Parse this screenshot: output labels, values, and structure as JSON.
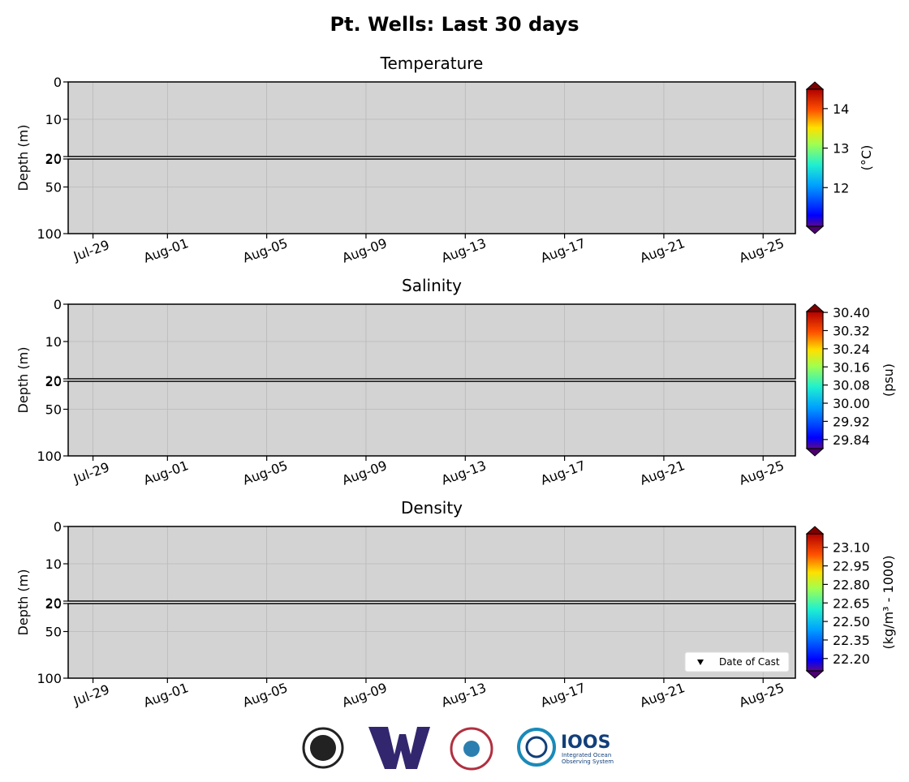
{
  "title": "Pt. Wells: Last 30 days",
  "chart_data": [
    {
      "type": "heatmap",
      "title": "Temperature",
      "ylabel": "Depth (m)",
      "background": "#d3d3d3",
      "grid": true,
      "ylim_upper": [
        0,
        20
      ],
      "yticks_upper": [
        0,
        10,
        20
      ],
      "ylim_lower": [
        20,
        100
      ],
      "yticks_lower": [
        20,
        50,
        100
      ],
      "xlim": [
        -1.0,
        28.3
      ],
      "xticks": [
        {
          "value": 0,
          "label": "Jul-29"
        },
        {
          "value": 3,
          "label": "Aug-01"
        },
        {
          "value": 7,
          "label": "Aug-05"
        },
        {
          "value": 11,
          "label": "Aug-09"
        },
        {
          "value": 15,
          "label": "Aug-13"
        },
        {
          "value": 19,
          "label": "Aug-17"
        },
        {
          "value": 23,
          "label": "Aug-21"
        },
        {
          "value": 27,
          "label": "Aug-25"
        }
      ],
      "colorbar": {
        "label": "(°C)",
        "lim": [
          11.02,
          14.49
        ],
        "ticks": [
          12,
          13,
          14
        ]
      }
    },
    {
      "type": "heatmap",
      "title": "Salinity",
      "ylabel": "Depth (m)",
      "background": "#d3d3d3",
      "grid": true,
      "ylim_upper": [
        0,
        20
      ],
      "yticks_upper": [
        0,
        10,
        20
      ],
      "ylim_lower": [
        20,
        100
      ],
      "yticks_lower": [
        20,
        50,
        100
      ],
      "xlim": [
        -1.0,
        28.3
      ],
      "xticks": [
        {
          "value": 0,
          "label": "Jul-29"
        },
        {
          "value": 3,
          "label": "Aug-01"
        },
        {
          "value": 7,
          "label": "Aug-05"
        },
        {
          "value": 11,
          "label": "Aug-09"
        },
        {
          "value": 15,
          "label": "Aug-13"
        },
        {
          "value": 19,
          "label": "Aug-17"
        },
        {
          "value": 23,
          "label": "Aug-21"
        },
        {
          "value": 27,
          "label": "Aug-25"
        }
      ],
      "colorbar": {
        "label": "(psu)",
        "lim": [
          29.8,
          30.404
        ],
        "ticks": [
          {
            "value": 29.84,
            "label": "29.84"
          },
          {
            "value": 29.92,
            "label": "29.92"
          },
          {
            "value": 30.0,
            "label": "30.00"
          },
          {
            "value": 30.08,
            "label": "30.08"
          },
          {
            "value": 30.16,
            "label": "30.16"
          },
          {
            "value": 30.24,
            "label": "30.24"
          },
          {
            "value": 30.32,
            "label": "30.32"
          },
          {
            "value": 30.4,
            "label": "30.40"
          }
        ]
      }
    },
    {
      "type": "heatmap",
      "title": "Density",
      "ylabel": "Depth (m)",
      "background": "#d3d3d3",
      "grid": true,
      "ylim_upper": [
        0,
        20
      ],
      "yticks_upper": [
        0,
        10,
        20
      ],
      "ylim_lower": [
        20,
        100
      ],
      "yticks_lower": [
        20,
        50,
        100
      ],
      "xlim": [
        -1.0,
        28.3
      ],
      "xticks": [
        {
          "value": 0,
          "label": "Jul-29"
        },
        {
          "value": 3,
          "label": "Aug-01"
        },
        {
          "value": 7,
          "label": "Aug-05"
        },
        {
          "value": 11,
          "label": "Aug-09"
        },
        {
          "value": 15,
          "label": "Aug-13"
        },
        {
          "value": 19,
          "label": "Aug-17"
        },
        {
          "value": 23,
          "label": "Aug-21"
        },
        {
          "value": 27,
          "label": "Aug-25"
        }
      ],
      "colorbar": {
        "label": "(kg/m³ - 1000)",
        "lim": [
          22.1,
          23.21
        ],
        "ticks": [
          {
            "value": 22.2,
            "label": "22.20"
          },
          {
            "value": 22.35,
            "label": "22.35"
          },
          {
            "value": 22.5,
            "label": "22.50"
          },
          {
            "value": 22.65,
            "label": "22.65"
          },
          {
            "value": 22.8,
            "label": "22.80"
          },
          {
            "value": 22.95,
            "label": "22.95"
          },
          {
            "value": 23.1,
            "label": "23.10"
          }
        ]
      },
      "legend": {
        "entries": [
          "Date of Cast"
        ],
        "loc": "lower right"
      }
    }
  ],
  "logos": {
    "ioos_name": "IOOS",
    "ioos_tagline": [
      "Integrated Ocean",
      "Observing System"
    ]
  }
}
